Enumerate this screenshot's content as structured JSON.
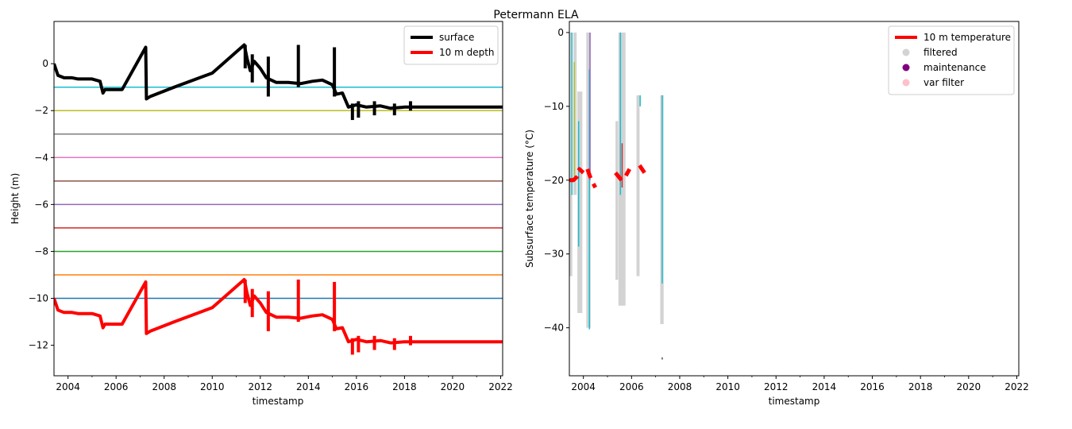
{
  "figure_title": "Petermann ELA",
  "colors": {
    "surface": "#000000",
    "depth10m": "#ff0000",
    "filtered": "#d3d3d3",
    "maintenance": "#800080",
    "var_filter": "#ffc0cb",
    "sensor_cycle": [
      "#1f77b4",
      "#ff7f0e",
      "#2ca02c",
      "#d62728",
      "#9467bd",
      "#8c564b",
      "#e377c2",
      "#7f7f7f",
      "#bcbd22",
      "#17becf"
    ]
  },
  "chart_data": [
    {
      "type": "line",
      "xlabel": "timestamp",
      "ylabel": "Height (m)",
      "xlim": [
        "2003-06-01",
        "2022-02-01"
      ],
      "ylim": [
        -13.3,
        1.8
      ],
      "xticks": [
        "2004",
        "2006",
        "2008",
        "2010",
        "2012",
        "2014",
        "2016",
        "2018",
        "2020",
        "2022"
      ],
      "yticks": [
        0,
        -2,
        -4,
        -6,
        -8,
        -10,
        -12
      ],
      "legend_position": "top-right",
      "legend": [
        {
          "label": "surface",
          "color": "#000000"
        },
        {
          "label": "10 m depth",
          "color": "#ff0000"
        }
      ],
      "sensor_depth_lines": [
        {
          "y": -1,
          "color": "#17becf"
        },
        {
          "y": -2,
          "color": "#bcbd22"
        },
        {
          "y": -3,
          "color": "#7f7f7f"
        },
        {
          "y": -4,
          "color": "#e377c2"
        },
        {
          "y": -5,
          "color": "#8c564b"
        },
        {
          "y": -6,
          "color": "#9467bd"
        },
        {
          "y": -7,
          "color": "#d62728"
        },
        {
          "y": -8,
          "color": "#2ca02c"
        },
        {
          "y": -9,
          "color": "#ff7f0e"
        },
        {
          "y": -10,
          "color": "#1f77b4"
        }
      ],
      "series": [
        {
          "name": "surface",
          "color": "#000000",
          "x": [
            "2003-06-01",
            "2003-08-01",
            "2003-11-01",
            "2004-03-01",
            "2004-06-01",
            "2005-01-01",
            "2005-05-01",
            "2005-06-15",
            "2005-07-15",
            "2005-09-01",
            "2006-04-01",
            "2007-03-25",
            "2007-04-05",
            "2007-06-01",
            "2008-06-01",
            "2010-01-01",
            "2011-05-01",
            "2011-06-15",
            "2011-08-01",
            "2011-10-01",
            "2012-01-01",
            "2012-04-01",
            "2012-09-01",
            "2013-03-01",
            "2013-09-01",
            "2014-03-01",
            "2014-08-01",
            "2015-01-01",
            "2015-03-01",
            "2015-06-01",
            "2015-09-01",
            "2016-01-01",
            "2016-06-01",
            "2017-01-01",
            "2017-06-01",
            "2018-01-01",
            "2018-06-01",
            "2019-06-01",
            "2022-02-01"
          ],
          "y": [
            0.0,
            -0.5,
            -0.6,
            -0.6,
            -0.65,
            -0.65,
            -0.75,
            -1.25,
            -1.1,
            -1.1,
            -1.1,
            0.7,
            -1.5,
            -1.4,
            -1.0,
            -0.4,
            0.8,
            0.2,
            -0.3,
            0.1,
            -0.2,
            -0.6,
            -0.8,
            -0.8,
            -0.85,
            -0.75,
            -0.7,
            -0.9,
            -1.3,
            -1.25,
            -1.85,
            -1.75,
            -1.85,
            -1.8,
            -1.9,
            -1.85,
            -1.85,
            -1.85,
            -1.85
          ]
        },
        {
          "name": "10 m depth",
          "color": "#ff0000",
          "x": [
            "2003-06-01",
            "2003-08-01",
            "2003-11-01",
            "2004-03-01",
            "2004-06-01",
            "2005-01-01",
            "2005-05-01",
            "2005-06-15",
            "2005-07-15",
            "2005-09-01",
            "2006-04-01",
            "2007-03-25",
            "2007-04-05",
            "2007-06-01",
            "2008-06-01",
            "2010-01-01",
            "2011-05-01",
            "2011-06-15",
            "2011-08-01",
            "2011-10-01",
            "2012-01-01",
            "2012-04-01",
            "2012-09-01",
            "2013-03-01",
            "2013-09-01",
            "2014-03-01",
            "2014-08-01",
            "2015-01-01",
            "2015-03-01",
            "2015-06-01",
            "2015-09-01",
            "2016-01-01",
            "2016-06-01",
            "2017-01-01",
            "2017-06-01",
            "2018-01-01",
            "2018-06-01",
            "2019-06-01",
            "2022-02-01"
          ],
          "y": [
            -10.0,
            -10.5,
            -10.6,
            -10.6,
            -10.65,
            -10.65,
            -10.75,
            -11.25,
            -11.1,
            -11.1,
            -11.1,
            -9.3,
            -11.5,
            -11.4,
            -11.0,
            -10.4,
            -9.2,
            -9.8,
            -10.3,
            -9.9,
            -10.2,
            -10.6,
            -10.8,
            -10.8,
            -10.85,
            -10.75,
            -10.7,
            -10.9,
            -11.3,
            -11.25,
            -11.85,
            -11.75,
            -11.85,
            -11.8,
            -11.9,
            -11.85,
            -11.85,
            -11.85,
            -11.85
          ]
        }
      ],
      "spikes": [
        {
          "series": "surface",
          "x": "2011-05-15",
          "y_from": -0.2,
          "y_to": 0.8
        },
        {
          "series": "surface",
          "x": "2011-09-01",
          "y_from": -0.8,
          "y_to": 0.4
        },
        {
          "series": "surface",
          "x": "2012-05-01",
          "y_from": -1.4,
          "y_to": 0.3
        },
        {
          "series": "surface",
          "x": "2013-08-01",
          "y_from": -1.0,
          "y_to": 0.8
        },
        {
          "series": "surface",
          "x": "2015-02-01",
          "y_from": -1.4,
          "y_to": 0.7
        },
        {
          "series": "surface",
          "x": "2015-11-01",
          "y_from": -2.4,
          "y_to": -1.7
        },
        {
          "series": "surface",
          "x": "2016-02-01",
          "y_from": -2.3,
          "y_to": -1.6
        },
        {
          "series": "surface",
          "x": "2016-10-01",
          "y_from": -2.2,
          "y_to": -1.6
        },
        {
          "series": "surface",
          "x": "2017-08-01",
          "y_from": -2.2,
          "y_to": -1.7
        },
        {
          "series": "surface",
          "x": "2018-04-01",
          "y_from": -2.0,
          "y_to": -1.6
        },
        {
          "series": "10 m depth",
          "x": "2011-05-15",
          "y_from": -10.2,
          "y_to": -9.2
        },
        {
          "series": "10 m depth",
          "x": "2011-09-01",
          "y_from": -10.8,
          "y_to": -9.6
        },
        {
          "series": "10 m depth",
          "x": "2012-05-01",
          "y_from": -11.4,
          "y_to": -9.7
        },
        {
          "series": "10 m depth",
          "x": "2013-08-01",
          "y_from": -11.0,
          "y_to": -9.2
        },
        {
          "series": "10 m depth",
          "x": "2015-02-01",
          "y_from": -11.4,
          "y_to": -9.3
        },
        {
          "series": "10 m depth",
          "x": "2015-11-01",
          "y_from": -12.4,
          "y_to": -11.7
        },
        {
          "series": "10 m depth",
          "x": "2016-02-01",
          "y_from": -12.3,
          "y_to": -11.6
        },
        {
          "series": "10 m depth",
          "x": "2016-10-01",
          "y_from": -12.2,
          "y_to": -11.6
        },
        {
          "series": "10 m depth",
          "x": "2017-08-01",
          "y_from": -12.2,
          "y_to": -11.7
        },
        {
          "series": "10 m depth",
          "x": "2018-04-01",
          "y_from": -12.0,
          "y_to": -11.6
        }
      ]
    },
    {
      "type": "scatter",
      "xlabel": "timestamp",
      "ylabel": "Subsurface temperature (°C)",
      "xlim": [
        "2003-06-01",
        "2022-02-01"
      ],
      "ylim": [
        -46.5,
        1.5
      ],
      "xticks": [
        "2004",
        "2006",
        "2008",
        "2010",
        "2012",
        "2014",
        "2016",
        "2018",
        "2020",
        "2022"
      ],
      "yticks": [
        0,
        -10,
        -20,
        -30,
        -40
      ],
      "legend_position": "top-right",
      "legend": [
        {
          "label": "10 m temperature",
          "color": "#ff0000",
          "marker": "line"
        },
        {
          "label": "filtered",
          "color": "#d3d3d3",
          "marker": "dot"
        },
        {
          "label": "maintenance",
          "color": "#800080",
          "marker": "dot"
        },
        {
          "label": "var filter",
          "color": "#ffc0cb",
          "marker": "dot"
        }
      ],
      "filtered_bands": [
        {
          "x_start": "2003-06-01",
          "x_end": "2003-07-15",
          "y_min": -33,
          "y_max": 0
        },
        {
          "x_start": "2003-08-01",
          "x_end": "2003-09-20",
          "y_min": -22,
          "y_max": 0
        },
        {
          "x_start": "2003-10-01",
          "x_end": "2003-12-15",
          "y_min": -38,
          "y_max": -8
        },
        {
          "x_start": "2004-02-15",
          "x_end": "2004-04-20",
          "y_min": -40,
          "y_max": 0
        },
        {
          "x_start": "2005-05-01",
          "x_end": "2005-06-10",
          "y_min": -33.5,
          "y_max": -12
        },
        {
          "x_start": "2005-06-15",
          "x_end": "2005-10-01",
          "y_min": -37,
          "y_max": 0
        },
        {
          "x_start": "2006-03-15",
          "x_end": "2006-05-01",
          "y_min": -33,
          "y_max": -8.5
        },
        {
          "x_start": "2007-03-10",
          "x_end": "2007-05-01",
          "y_min": -39.5,
          "y_max": -8.5
        }
      ],
      "sensor_traces": [
        {
          "color": "#17becf",
          "x": "2003-07-10",
          "y_from": -22,
          "y_to": 0
        },
        {
          "color": "#bcbd22",
          "x": "2003-08-15",
          "y_from": -20,
          "y_to": -4
        },
        {
          "color": "#17becf",
          "x": "2003-10-20",
          "y_from": -29,
          "y_to": -12
        },
        {
          "color": "#17becf",
          "x": "2004-04-01",
          "y_from": -40.2,
          "y_to": -5
        },
        {
          "color": "#9467bd",
          "x": "2004-04-10",
          "y_from": -20,
          "y_to": 0
        },
        {
          "color": "#17becf",
          "x": "2005-07-15",
          "y_from": -22,
          "y_to": 0
        },
        {
          "color": "#d62728",
          "x": "2005-08-10",
          "y_from": -21,
          "y_to": -15
        },
        {
          "color": "#17becf",
          "x": "2006-05-10",
          "y_from": -10,
          "y_to": -8.5
        },
        {
          "color": "#17becf",
          "x": "2007-04-10",
          "y_from": -34,
          "y_to": -8.5
        },
        {
          "color": "#555555",
          "x": "2007-04-10",
          "y_from": -44.3,
          "y_to": -44.0
        }
      ],
      "series": [
        {
          "name": "10 m temperature",
          "color": "#ff0000",
          "segments": [
            {
              "x": [
                "2003-06-01",
                "2003-08-01",
                "2003-10-01",
                "2003-11-01",
                "2004-01-01"
              ],
              "y": [
                -20.0,
                -20.0,
                -19.5,
                -18.5,
                -19.0
              ]
            },
            {
              "x": [
                "2004-03-01",
                "2004-05-01",
                "2004-07-01"
              ],
              "y": [
                -18.5,
                -20.0,
                -21.0
              ]
            },
            {
              "x": [
                "2005-05-01",
                "2005-08-01",
                "2005-10-01",
                "2005-12-01"
              ],
              "y": [
                -19.0,
                -20.0,
                -19.5,
                -18.5
              ]
            },
            {
              "x": [
                "2006-05-01",
                "2006-07-15"
              ],
              "y": [
                -18.0,
                -19.0
              ]
            }
          ]
        }
      ]
    }
  ]
}
